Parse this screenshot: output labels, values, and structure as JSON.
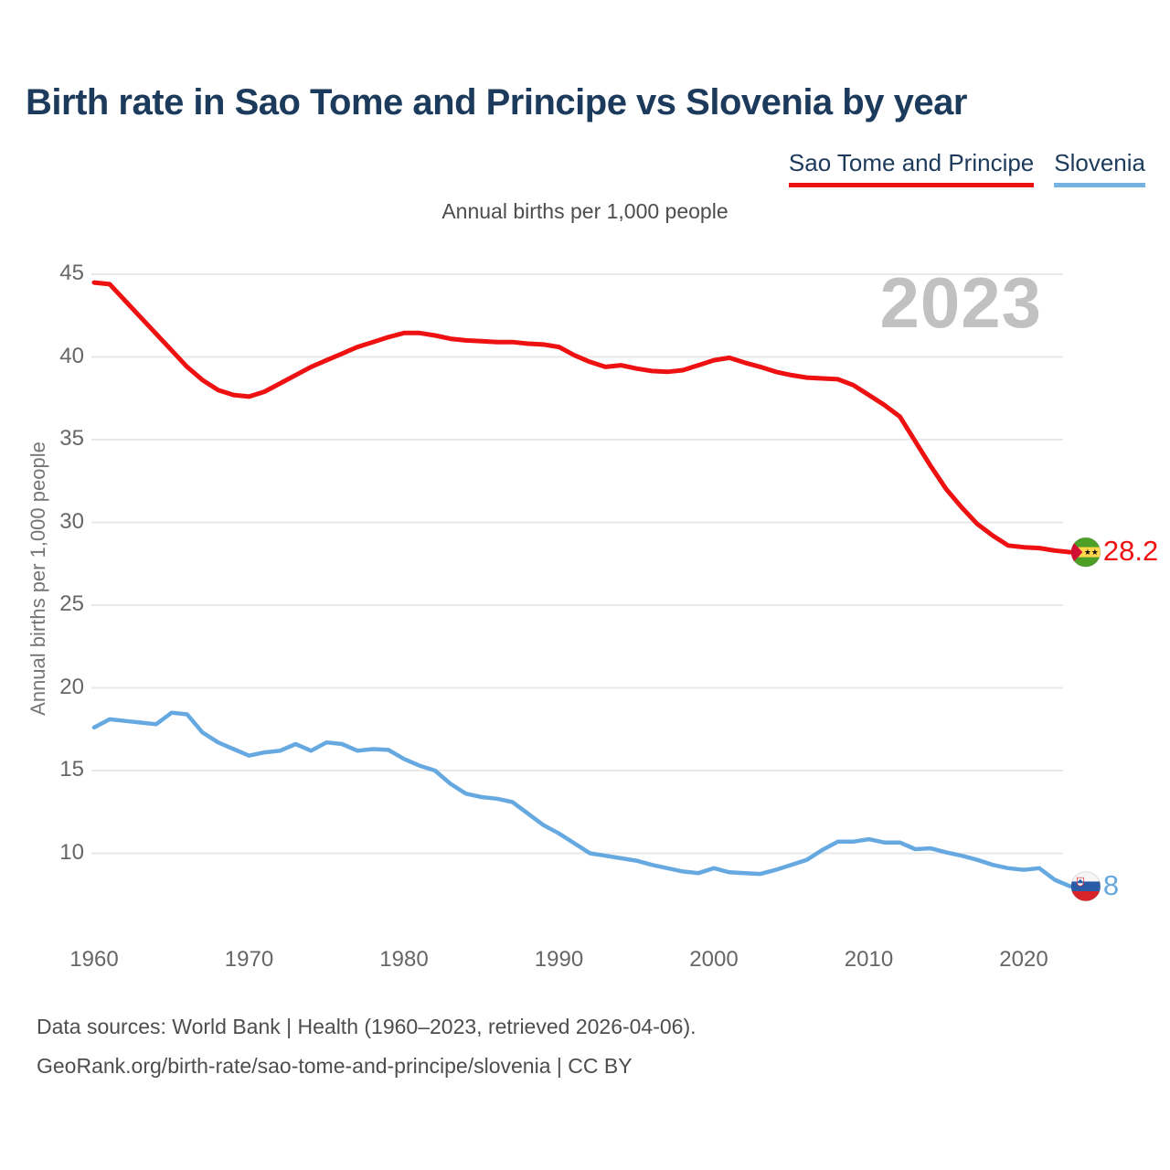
{
  "page": {
    "title": "Birth rate in Sao Tome and Principe vs Slovenia by year",
    "subtitle": "Annual births per 1,000 people",
    "watermark_year": "2023",
    "footer_line1": "Data sources: World Bank | Health (1960–2023, retrieved 2026-04-06).",
    "footer_line2": "GeoRank.org/birth-rate/sao-tome-and-principe/slovenia | CC BY"
  },
  "legend": [
    {
      "label": "Sao Tome and Principe",
      "color": "#ee1111"
    },
    {
      "label": "Slovenia",
      "color": "#74b2e4"
    }
  ],
  "colors": {
    "title": "#1b3a5c",
    "stp_line": "#ee1111",
    "slovenia_line": "#66a9e0",
    "gridline": "#e8e8e8",
    "tick_text": "#666666",
    "watermark": "#c1c1c1"
  },
  "chart_data": {
    "type": "line",
    "title": "Birth rate in Sao Tome and Principe vs Slovenia by year",
    "ylabel": "Annual births per 1,000 people",
    "xlabel": "",
    "grid": "horizontal-only",
    "legend_position": "top-right",
    "xticks": [
      1960,
      1970,
      1980,
      1990,
      2000,
      2010,
      2020
    ],
    "yticks": [
      45,
      40,
      35,
      30,
      25,
      20,
      15,
      10
    ],
    "ylim": [
      7.5,
      45
    ],
    "xlim": [
      1960,
      2023
    ],
    "x": [
      1960,
      1961,
      1962,
      1963,
      1964,
      1965,
      1966,
      1967,
      1968,
      1969,
      1970,
      1971,
      1972,
      1973,
      1974,
      1975,
      1976,
      1977,
      1978,
      1979,
      1980,
      1981,
      1982,
      1983,
      1984,
      1985,
      1986,
      1987,
      1988,
      1989,
      1990,
      1991,
      1992,
      1993,
      1994,
      1995,
      1996,
      1997,
      1998,
      1999,
      2000,
      2001,
      2002,
      2003,
      2004,
      2005,
      2006,
      2007,
      2008,
      2009,
      2010,
      2011,
      2012,
      2013,
      2014,
      2015,
      2016,
      2017,
      2018,
      2019,
      2020,
      2021,
      2022,
      2023
    ],
    "series": [
      {
        "id": "stp",
        "name": "Sao Tome and Principe",
        "color": "#ee1111",
        "end_label": "28.2",
        "flag": "sao-tome-and-principe",
        "values": [
          44.5,
          44.4,
          43.4,
          42.4,
          41.4,
          40.4,
          39.4,
          38.6,
          38.0,
          37.7,
          37.6,
          37.9,
          38.4,
          38.9,
          39.4,
          39.8,
          40.2,
          40.6,
          40.9,
          41.2,
          41.45,
          41.45,
          41.3,
          41.1,
          41.0,
          40.95,
          40.9,
          40.9,
          40.8,
          40.75,
          40.6,
          40.1,
          39.7,
          39.4,
          39.5,
          39.3,
          39.15,
          39.1,
          39.2,
          39.5,
          39.8,
          39.95,
          39.65,
          39.4,
          39.1,
          38.9,
          38.75,
          38.7,
          38.65,
          38.3,
          37.7,
          37.1,
          36.4,
          34.9,
          33.4,
          32.0,
          30.9,
          29.9,
          29.2,
          28.6,
          28.5,
          28.45,
          28.3,
          28.2
        ]
      },
      {
        "id": "svn",
        "name": "Slovenia",
        "color": "#66a9e0",
        "end_label": "8",
        "flag": "slovenia",
        "values": [
          17.6,
          18.1,
          18.0,
          17.9,
          17.8,
          18.5,
          18.4,
          17.3,
          16.7,
          16.3,
          15.9,
          16.1,
          16.2,
          16.6,
          16.2,
          16.7,
          16.6,
          16.2,
          16.3,
          16.25,
          15.7,
          15.3,
          15.0,
          14.2,
          13.6,
          13.4,
          13.3,
          13.1,
          12.4,
          11.7,
          11.2,
          10.6,
          10.0,
          9.85,
          9.7,
          9.55,
          9.3,
          9.1,
          8.9,
          8.8,
          9.1,
          8.85,
          8.8,
          8.75,
          9.0,
          9.3,
          9.6,
          10.2,
          10.7,
          10.7,
          10.85,
          10.65,
          10.65,
          10.25,
          10.3,
          10.05,
          9.85,
          9.6,
          9.3,
          9.1,
          9.0,
          9.1,
          8.4,
          8.0
        ]
      }
    ]
  }
}
